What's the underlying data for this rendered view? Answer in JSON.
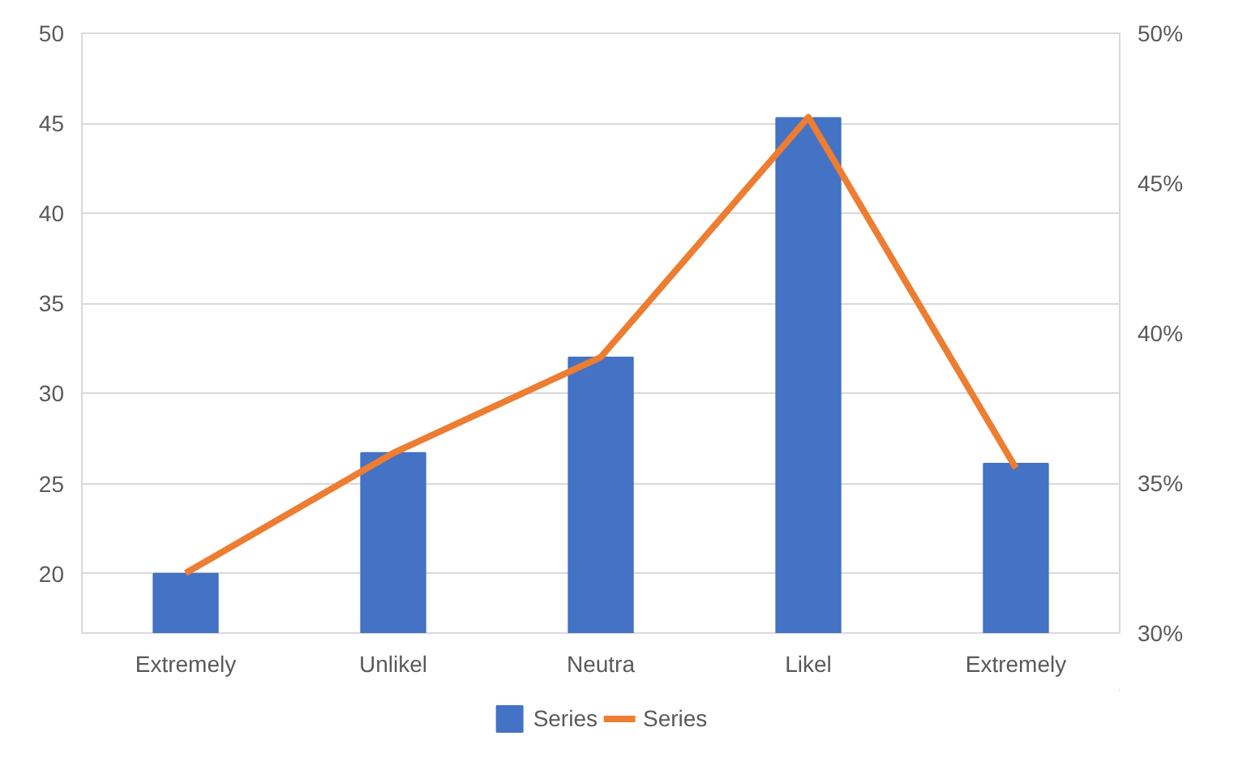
{
  "chart_data": {
    "type": "bar",
    "categories": [
      "Extremely",
      "Unlikel",
      "Neutra",
      "Likel",
      "Extremely"
    ],
    "series": [
      {
        "name": "Series",
        "color": "#4472c4",
        "values": [
          20,
          26.7,
          32,
          45.3,
          26.1
        ]
      },
      {
        "name": "Series",
        "type": "line",
        "axis": "y2",
        "color": "#ed7d31",
        "values": [
          32,
          36,
          39.2,
          47.2,
          35.5
        ]
      }
    ],
    "ylim": [
      16.7,
      50
    ],
    "yticks": [
      20,
      25,
      30,
      35,
      40,
      45,
      50
    ],
    "y2lim": [
      30,
      50
    ],
    "y2ticks": [
      {
        "value": 30,
        "label": "30%"
      },
      {
        "value": 35,
        "label": "35%"
      },
      {
        "value": 40,
        "label": "40%"
      },
      {
        "value": 45,
        "label": "45%"
      },
      {
        "value": 50,
        "label": "50%"
      }
    ],
    "grid": "y",
    "legend": "bottom",
    "marker": "none",
    "line_style": "solid"
  }
}
